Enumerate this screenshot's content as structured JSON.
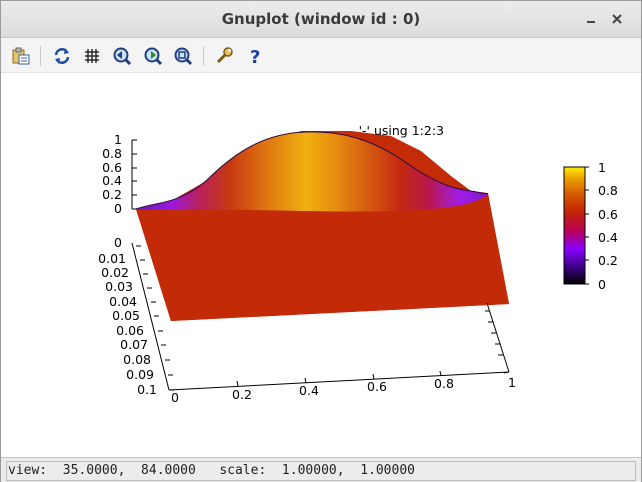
{
  "window": {
    "title": "Gnuplot (window id : 0)"
  },
  "toolbar": {
    "buttons": [
      {
        "icon": "copy-to-clipboard-icon"
      },
      {
        "icon": "replot-icon"
      },
      {
        "icon": "grid-icon"
      },
      {
        "icon": "previous-zoom-icon"
      },
      {
        "icon": "next-zoom-icon"
      },
      {
        "icon": "autoscale-icon"
      },
      {
        "icon": "configuration-icon"
      },
      {
        "icon": "help-icon"
      }
    ]
  },
  "plot": {
    "key_label": "'-' using 1:2:3",
    "z_ticks": [
      "1",
      "0.8",
      "0.6",
      "0.4",
      "0.2",
      "0"
    ],
    "y_ticks": [
      "0",
      "0.01",
      "0.02",
      "0.03",
      "0.04",
      "0.05",
      "0.06",
      "0.07",
      "0.08",
      "0.09",
      "0.1"
    ],
    "x_ticks": [
      "0",
      "0.2",
      "0.4",
      "0.6",
      "0.8",
      "1"
    ],
    "colorbox_ticks": [
      "1",
      "0.8",
      "0.6",
      "0.4",
      "0.2",
      "0"
    ],
    "palette_colors": [
      "#000000",
      "#3a0080",
      "#8800ff",
      "#b8005a",
      "#c42400",
      "#d86000",
      "#eaa000",
      "#ffee00"
    ]
  },
  "chart_data": {
    "type": "surface",
    "x_range": [
      0,
      1
    ],
    "y_range": [
      0,
      0.1
    ],
    "z_range": [
      0,
      1
    ],
    "view": {
      "rot_x": 35,
      "rot_z": 84,
      "scale": 1,
      "scale_z": 1
    },
    "x_ticks": [
      0,
      0.2,
      0.4,
      0.6,
      0.8,
      1
    ],
    "y_ticks": [
      0,
      0.01,
      0.02,
      0.03,
      0.04,
      0.05,
      0.06,
      0.07,
      0.08,
      0.09,
      0.1
    ],
    "z_ticks": [
      0,
      0.2,
      0.4,
      0.6,
      0.8,
      1
    ],
    "colorbox_range": [
      0,
      1
    ],
    "series": [
      {
        "name": "'-' using 1:2:3",
        "description_values": {
          "x": [
            0,
            0.1,
            0.2,
            0.3,
            0.4,
            0.5,
            0.6,
            0.7,
            0.8,
            0.9,
            1
          ],
          "z_at_y0": [
            0,
            0.1,
            0.35,
            0.65,
            0.9,
            1,
            0.9,
            0.65,
            0.35,
            0.1,
            0
          ]
        }
      }
    ]
  },
  "statusbar": {
    "text": "view:  35.0000,  84.0000   scale:  1.00000,  1.00000"
  }
}
